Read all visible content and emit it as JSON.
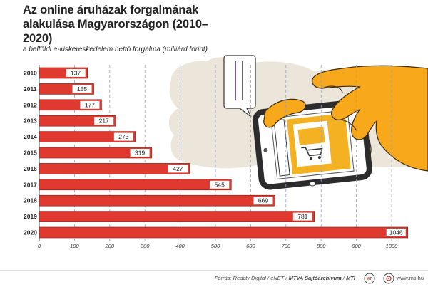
{
  "title": "Az online áruházak forgalmának alakulása Magyarországon (2010–2020)",
  "subtitle": "a belföldi e-kiskereskedelem nettó forgalma (milliárd forint)",
  "chart_data": {
    "type": "bar",
    "orientation": "horizontal",
    "categories": [
      "2010",
      "2011",
      "2012",
      "2013",
      "2014",
      "2015",
      "2016",
      "2017",
      "2018",
      "2019",
      "2020"
    ],
    "values": [
      137,
      155,
      177,
      217,
      273,
      319,
      427,
      545,
      669,
      781,
      1046
    ],
    "xlim": [
      0,
      1000
    ],
    "xticks": [
      0,
      100,
      200,
      300,
      400,
      500,
      600,
      700,
      800,
      900,
      1000
    ],
    "grid": true,
    "bar_color": "#e03a30"
  },
  "footer": {
    "source_prefix": "Forrás: Reacty Digital / eNET / ",
    "source_bold": "MTVA Sajtóarchívum",
    "source_sep": " / ",
    "source_end": "MTI",
    "site": "www.mti.hu",
    "mti_logo_text": "MTI"
  },
  "illustration": {
    "hand_color": "#f7a81b",
    "phone_color": "#3a3a3a",
    "icons": [
      "hand-icon",
      "smartphone-icon",
      "shopping-cart-icon",
      "speech-bubble-icon"
    ]
  }
}
